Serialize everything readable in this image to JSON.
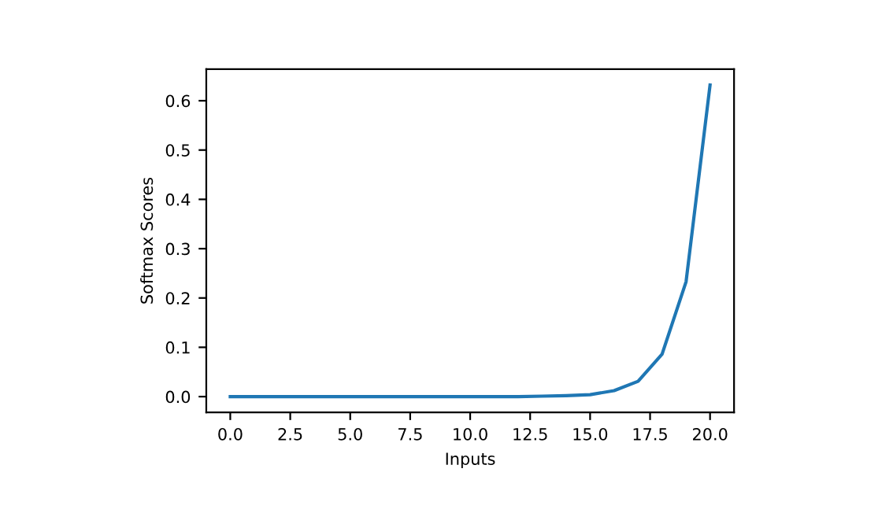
{
  "chart_data": {
    "type": "line",
    "xlabel": "Inputs",
    "ylabel": "Softmax Scores",
    "x": [
      0,
      1,
      2,
      3,
      4,
      5,
      6,
      7,
      8,
      9,
      10,
      11,
      12,
      13,
      14,
      15,
      16,
      17,
      18,
      19,
      20
    ],
    "series": [
      {
        "color": "#1f77b4",
        "values": [
          0,
          0,
          0,
          0,
          0,
          0,
          0,
          0,
          0,
          0,
          0,
          0,
          0,
          0.001,
          0.002,
          0.004,
          0.012,
          0.031,
          0.086,
          0.233,
          0.632
        ]
      }
    ],
    "xlim": [
      -1,
      21
    ],
    "ylim": [
      -0.032,
      0.664
    ],
    "xticks": [
      {
        "value": 0,
        "label": "0.0"
      },
      {
        "value": 2.5,
        "label": "2.5"
      },
      {
        "value": 5,
        "label": "5.0"
      },
      {
        "value": 7.5,
        "label": "7.5"
      },
      {
        "value": 10,
        "label": "10.0"
      },
      {
        "value": 12.5,
        "label": "12.5"
      },
      {
        "value": 15,
        "label": "15.0"
      },
      {
        "value": 17.5,
        "label": "17.5"
      },
      {
        "value": 20,
        "label": "20.0"
      }
    ],
    "yticks": [
      {
        "value": 0,
        "label": "0.0"
      },
      {
        "value": 0.1,
        "label": "0.1"
      },
      {
        "value": 0.2,
        "label": "0.2"
      },
      {
        "value": 0.3,
        "label": "0.3"
      },
      {
        "value": 0.4,
        "label": "0.4"
      },
      {
        "value": 0.5,
        "label": "0.5"
      },
      {
        "value": 0.6,
        "label": "0.6"
      }
    ],
    "grid": false,
    "legend": false
  }
}
